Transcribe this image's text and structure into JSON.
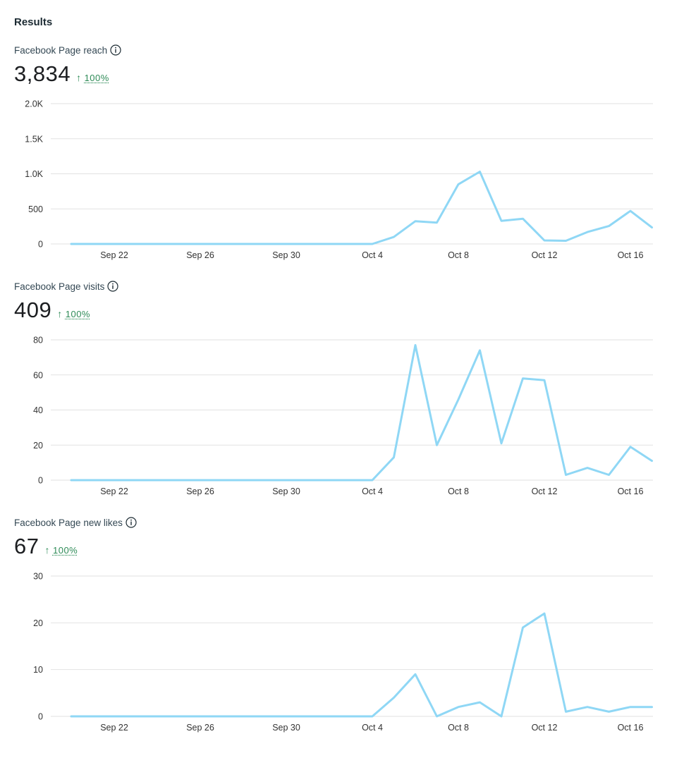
{
  "page": {
    "title": "Results"
  },
  "metrics": [
    {
      "label": "Facebook Page reach",
      "value": "3,834",
      "change": "100%",
      "change_direction": "up-arrow-icon"
    },
    {
      "label": "Facebook Page visits",
      "value": "409",
      "change": "100%",
      "change_direction": "up-arrow-icon"
    },
    {
      "label": "Facebook Page new likes",
      "value": "67",
      "change": "100%",
      "change_direction": "up-arrow-icon"
    }
  ],
  "colors": {
    "line": "#8fd7f5",
    "positive": "#2e8b57",
    "grid": "#e2e2e2"
  },
  "chart_data": [
    {
      "type": "line",
      "title": "Facebook Page reach",
      "x": [
        "Sep 20",
        "Sep 21",
        "Sep 22",
        "Sep 23",
        "Sep 24",
        "Sep 25",
        "Sep 26",
        "Sep 27",
        "Sep 28",
        "Sep 29",
        "Sep 30",
        "Oct 1",
        "Oct 2",
        "Oct 3",
        "Oct 4",
        "Oct 5",
        "Oct 6",
        "Oct 7",
        "Oct 8",
        "Oct 9",
        "Oct 10",
        "Oct 11",
        "Oct 12",
        "Oct 13",
        "Oct 14",
        "Oct 15",
        "Oct 16",
        "Oct 17"
      ],
      "series": [
        {
          "name": "Facebook Page reach",
          "values": [
            0,
            0,
            0,
            0,
            0,
            0,
            0,
            0,
            0,
            0,
            0,
            0,
            0,
            0,
            0,
            100,
            325,
            305,
            850,
            1030,
            330,
            360,
            50,
            45,
            170,
            255,
            470,
            235
          ]
        }
      ],
      "ylim": [
        0,
        2000
      ],
      "yticks": [
        0,
        500,
        1000,
        1500,
        2000
      ],
      "ytick_labels": [
        "0",
        "500",
        "1.0K",
        "1.5K",
        "2.0K"
      ],
      "xtick_labels": [
        "Sep 22",
        "Sep 26",
        "Sep 30",
        "Oct 4",
        "Oct 8",
        "Oct 12",
        "Oct 16"
      ],
      "xtick_indices": [
        2,
        6,
        10,
        14,
        18,
        22,
        26
      ]
    },
    {
      "type": "line",
      "title": "Facebook Page visits",
      "x": [
        "Sep 20",
        "Sep 21",
        "Sep 22",
        "Sep 23",
        "Sep 24",
        "Sep 25",
        "Sep 26",
        "Sep 27",
        "Sep 28",
        "Sep 29",
        "Sep 30",
        "Oct 1",
        "Oct 2",
        "Oct 3",
        "Oct 4",
        "Oct 5",
        "Oct 6",
        "Oct 7",
        "Oct 8",
        "Oct 9",
        "Oct 10",
        "Oct 11",
        "Oct 12",
        "Oct 13",
        "Oct 14",
        "Oct 15",
        "Oct 16",
        "Oct 17"
      ],
      "series": [
        {
          "name": "Facebook Page visits",
          "values": [
            0,
            0,
            0,
            0,
            0,
            0,
            0,
            0,
            0,
            0,
            0,
            0,
            0,
            0,
            0,
            13,
            77,
            20,
            46,
            74,
            21,
            58,
            57,
            3,
            7,
            3,
            19,
            11
          ]
        }
      ],
      "ylim": [
        0,
        80
      ],
      "yticks": [
        0,
        20,
        40,
        60,
        80
      ],
      "ytick_labels": [
        "0",
        "20",
        "40",
        "60",
        "80"
      ],
      "xtick_labels": [
        "Sep 22",
        "Sep 26",
        "Sep 30",
        "Oct 4",
        "Oct 8",
        "Oct 12",
        "Oct 16"
      ],
      "xtick_indices": [
        2,
        6,
        10,
        14,
        18,
        22,
        26
      ]
    },
    {
      "type": "line",
      "title": "Facebook Page new likes",
      "x": [
        "Sep 20",
        "Sep 21",
        "Sep 22",
        "Sep 23",
        "Sep 24",
        "Sep 25",
        "Sep 26",
        "Sep 27",
        "Sep 28",
        "Sep 29",
        "Sep 30",
        "Oct 1",
        "Oct 2",
        "Oct 3",
        "Oct 4",
        "Oct 5",
        "Oct 6",
        "Oct 7",
        "Oct 8",
        "Oct 9",
        "Oct 10",
        "Oct 11",
        "Oct 12",
        "Oct 13",
        "Oct 14",
        "Oct 15",
        "Oct 16",
        "Oct 17"
      ],
      "series": [
        {
          "name": "Facebook Page new likes",
          "values": [
            0,
            0,
            0,
            0,
            0,
            0,
            0,
            0,
            0,
            0,
            0,
            0,
            0,
            0,
            0,
            4,
            9,
            0,
            2,
            3,
            0,
            19,
            22,
            1,
            2,
            1,
            2,
            2
          ]
        }
      ],
      "ylim": [
        0,
        30
      ],
      "yticks": [
        0,
        10,
        20,
        30
      ],
      "ytick_labels": [
        "0",
        "10",
        "20",
        "30"
      ],
      "xtick_labels": [
        "Sep 22",
        "Sep 26",
        "Sep 30",
        "Oct 4",
        "Oct 8",
        "Oct 12",
        "Oct 16"
      ],
      "xtick_indices": [
        2,
        6,
        10,
        14,
        18,
        22,
        26
      ]
    }
  ]
}
